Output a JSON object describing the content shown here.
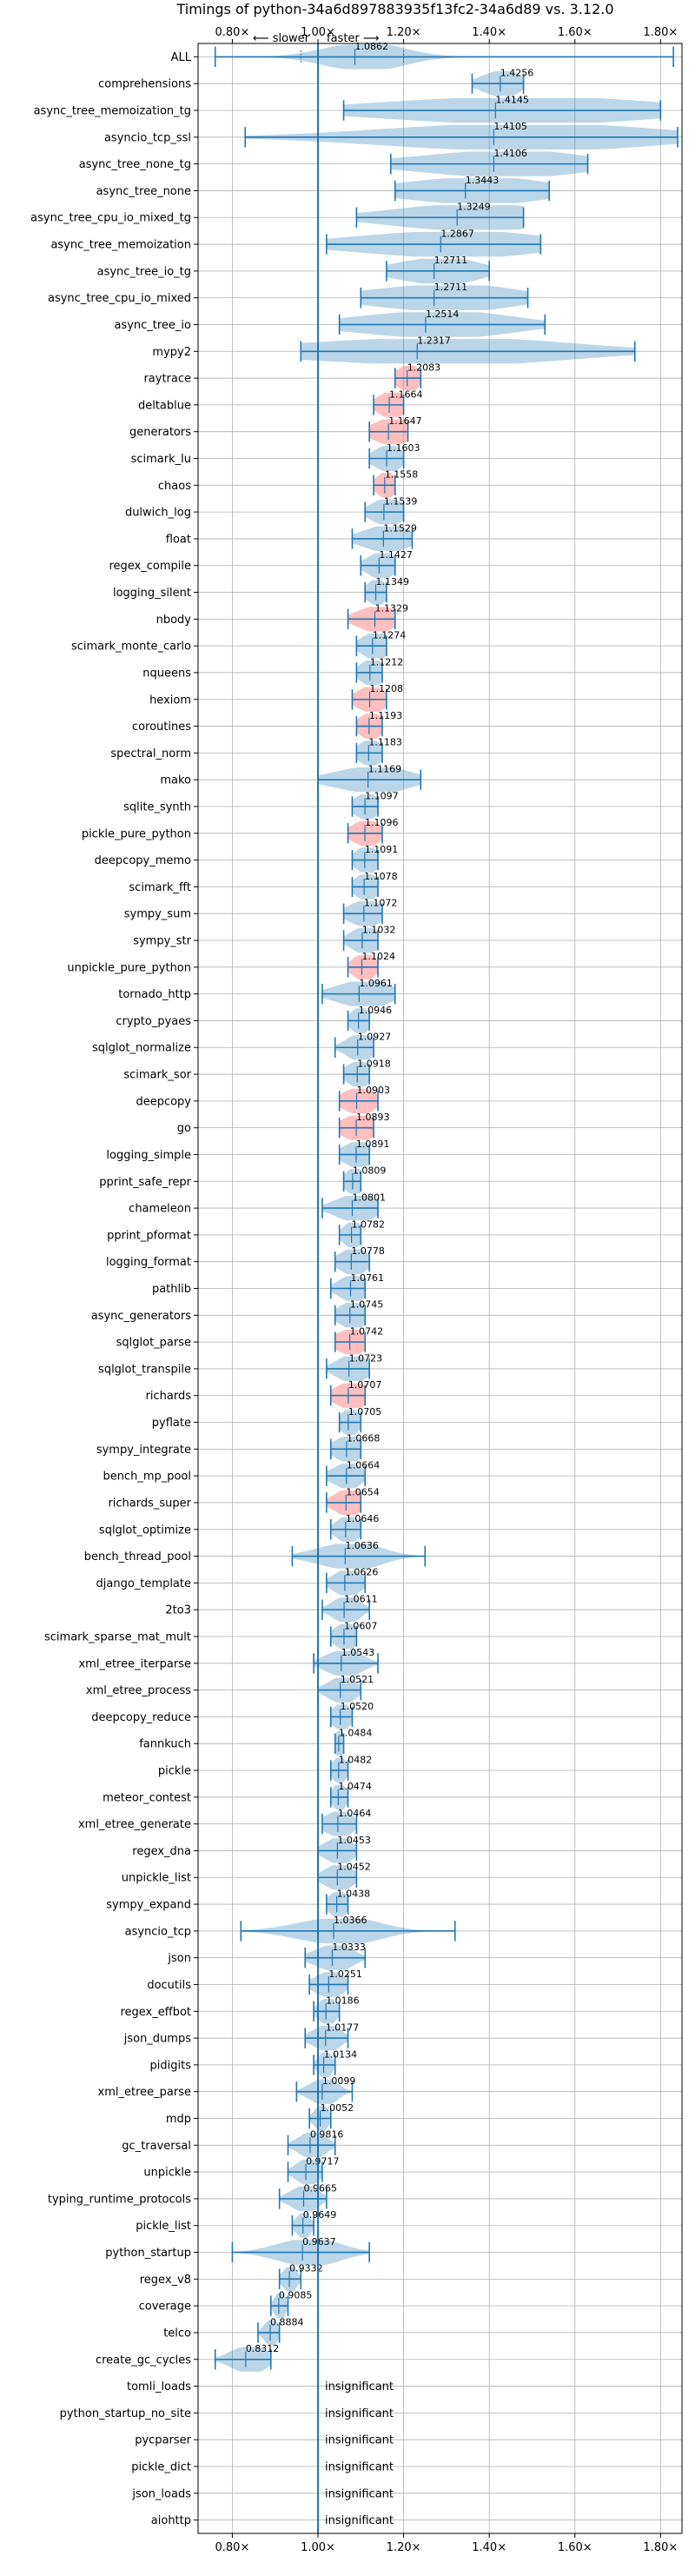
{
  "chart_data": {
    "type": "violin",
    "title": "Timings of python-34a6d897883935f13fc2-34a6d89 vs. 3.12.0",
    "direction_labels": {
      "slower": "⟵ slower",
      "faster": "faster ⟶"
    },
    "xlim": [
      0.72,
      1.85
    ],
    "x_ticks": [
      0.8,
      1.0,
      1.2,
      1.4,
      1.6,
      1.8
    ],
    "x_tick_labels": [
      "0.80×",
      "1.00×",
      "1.20×",
      "1.40×",
      "1.60×",
      "1.80×"
    ],
    "reference_x": 1.0,
    "grid": true,
    "insignificant_label": "insignificant",
    "colors": {
      "normal": "#1f77b4",
      "highlight": "#ff7f7f",
      "line": "#1f77b4"
    },
    "benchmarks": [
      {
        "name": "ALL",
        "value": 1.0862,
        "label": "1.0862",
        "low": 0.76,
        "high": 1.83,
        "q1": 0.96,
        "q3": 1.2,
        "spread": 0.09,
        "highlight": false
      },
      {
        "name": "comprehensions",
        "value": 1.4256,
        "label": "1.4256",
        "low": 1.36,
        "high": 1.48,
        "spread": 0.04,
        "highlight": false
      },
      {
        "name": "async_tree_memoization_tg",
        "value": 1.4145,
        "label": "1.4145",
        "low": 1.06,
        "high": 1.8,
        "spread": 0.3,
        "highlight": false
      },
      {
        "name": "asyncio_tcp_ssl",
        "value": 1.4105,
        "label": "1.4105",
        "low": 0.83,
        "high": 1.84,
        "spread": 0.3,
        "highlight": false
      },
      {
        "name": "async_tree_none_tg",
        "value": 1.4106,
        "label": "1.4106",
        "low": 1.17,
        "high": 1.63,
        "spread": 0.18,
        "highlight": false
      },
      {
        "name": "async_tree_none",
        "value": 1.3443,
        "label": "1.3443",
        "low": 1.18,
        "high": 1.54,
        "spread": 0.16,
        "highlight": false
      },
      {
        "name": "async_tree_cpu_io_mixed_tg",
        "value": 1.3249,
        "label": "1.3249",
        "low": 1.09,
        "high": 1.48,
        "spread": 0.17,
        "highlight": false
      },
      {
        "name": "async_tree_memoization",
        "value": 1.2867,
        "label": "1.2867",
        "low": 1.02,
        "high": 1.52,
        "spread": 0.2,
        "highlight": false
      },
      {
        "name": "async_tree_io_tg",
        "value": 1.2711,
        "label": "1.2711",
        "low": 1.16,
        "high": 1.4,
        "spread": 0.09,
        "highlight": false
      },
      {
        "name": "async_tree_cpu_io_mixed",
        "value": 1.2711,
        "label": "1.2711",
        "low": 1.1,
        "high": 1.49,
        "spread": 0.16,
        "highlight": false
      },
      {
        "name": "async_tree_io",
        "value": 1.2514,
        "label": "1.2514",
        "low": 1.05,
        "high": 1.53,
        "spread": 0.17,
        "highlight": false
      },
      {
        "name": "mypy2",
        "value": 1.2317,
        "label": "1.2317",
        "low": 0.96,
        "high": 1.74,
        "spread": 0.3,
        "highlight": false
      },
      {
        "name": "raytrace",
        "value": 1.2083,
        "label": "1.2083",
        "low": 1.18,
        "high": 1.24,
        "spread": 0.025,
        "highlight": true
      },
      {
        "name": "deltablue",
        "value": 1.1664,
        "label": "1.1664",
        "low": 1.13,
        "high": 1.2,
        "spread": 0.03,
        "highlight": true
      },
      {
        "name": "generators",
        "value": 1.1647,
        "label": "1.1647",
        "low": 1.12,
        "high": 1.21,
        "spread": 0.04,
        "highlight": true
      },
      {
        "name": "scimark_lu",
        "value": 1.1603,
        "label": "1.1603",
        "low": 1.12,
        "high": 1.2,
        "spread": 0.03,
        "highlight": false
      },
      {
        "name": "chaos",
        "value": 1.1558,
        "label": "1.1558",
        "low": 1.13,
        "high": 1.18,
        "spread": 0.02,
        "highlight": true
      },
      {
        "name": "dulwich_log",
        "value": 1.1539,
        "label": "1.1539",
        "low": 1.11,
        "high": 1.2,
        "spread": 0.035,
        "highlight": false
      },
      {
        "name": "float",
        "value": 1.1529,
        "label": "1.1529",
        "low": 1.08,
        "high": 1.22,
        "spread": 0.05,
        "highlight": false
      },
      {
        "name": "regex_compile",
        "value": 1.1427,
        "label": "1.1427",
        "low": 1.1,
        "high": 1.18,
        "spread": 0.03,
        "highlight": false
      },
      {
        "name": "logging_silent",
        "value": 1.1349,
        "label": "1.1349",
        "low": 1.11,
        "high": 1.16,
        "spread": 0.02,
        "highlight": false
      },
      {
        "name": "nbody",
        "value": 1.1329,
        "label": "1.1329",
        "low": 1.07,
        "high": 1.18,
        "spread": 0.04,
        "highlight": true
      },
      {
        "name": "scimark_monte_carlo",
        "value": 1.1274,
        "label": "1.1274",
        "low": 1.09,
        "high": 1.16,
        "spread": 0.03,
        "highlight": false
      },
      {
        "name": "nqueens",
        "value": 1.1212,
        "label": "1.1212",
        "low": 1.09,
        "high": 1.15,
        "spread": 0.025,
        "highlight": false
      },
      {
        "name": "hexiom",
        "value": 1.1208,
        "label": "1.1208",
        "low": 1.08,
        "high": 1.16,
        "spread": 0.03,
        "highlight": true
      },
      {
        "name": "coroutines",
        "value": 1.1193,
        "label": "1.1193",
        "low": 1.09,
        "high": 1.15,
        "spread": 0.025,
        "highlight": true
      },
      {
        "name": "spectral_norm",
        "value": 1.1183,
        "label": "1.1183",
        "low": 1.09,
        "high": 1.15,
        "spread": 0.025,
        "highlight": false
      },
      {
        "name": "mako",
        "value": 1.1169,
        "label": "1.1169",
        "low": 1.0,
        "high": 1.24,
        "spread": 0.08,
        "highlight": false
      },
      {
        "name": "sqlite_synth",
        "value": 1.1097,
        "label": "1.1097",
        "low": 1.08,
        "high": 1.14,
        "spread": 0.025,
        "highlight": false
      },
      {
        "name": "pickle_pure_python",
        "value": 1.1096,
        "label": "1.1096",
        "low": 1.07,
        "high": 1.15,
        "spread": 0.03,
        "highlight": true
      },
      {
        "name": "deepcopy_memo",
        "value": 1.1091,
        "label": "1.1091",
        "low": 1.08,
        "high": 1.14,
        "spread": 0.025,
        "highlight": false
      },
      {
        "name": "scimark_fft",
        "value": 1.1078,
        "label": "1.1078",
        "low": 1.08,
        "high": 1.14,
        "spread": 0.025,
        "highlight": false
      },
      {
        "name": "sympy_sum",
        "value": 1.1072,
        "label": "1.1072",
        "low": 1.06,
        "high": 1.15,
        "spread": 0.035,
        "highlight": false
      },
      {
        "name": "sympy_str",
        "value": 1.1032,
        "label": "1.1032",
        "low": 1.06,
        "high": 1.14,
        "spread": 0.03,
        "highlight": false
      },
      {
        "name": "unpickle_pure_python",
        "value": 1.1024,
        "label": "1.1024",
        "low": 1.07,
        "high": 1.14,
        "spread": 0.025,
        "highlight": true
      },
      {
        "name": "tornado_http",
        "value": 1.0961,
        "label": "1.0961",
        "low": 1.01,
        "high": 1.18,
        "spread": 0.06,
        "highlight": false
      },
      {
        "name": "crypto_pyaes",
        "value": 1.0946,
        "label": "1.0946",
        "low": 1.07,
        "high": 1.12,
        "spread": 0.02,
        "highlight": false
      },
      {
        "name": "sqlglot_normalize",
        "value": 1.0927,
        "label": "1.0927",
        "low": 1.04,
        "high": 1.13,
        "spread": 0.03,
        "highlight": false
      },
      {
        "name": "scimark_sor",
        "value": 1.0918,
        "label": "1.0918",
        "low": 1.06,
        "high": 1.12,
        "spread": 0.025,
        "highlight": false
      },
      {
        "name": "deepcopy",
        "value": 1.0903,
        "label": "1.0903",
        "low": 1.05,
        "high": 1.14,
        "spread": 0.035,
        "highlight": true
      },
      {
        "name": "go",
        "value": 1.0893,
        "label": "1.0893",
        "low": 1.05,
        "high": 1.13,
        "spread": 0.035,
        "highlight": true
      },
      {
        "name": "logging_simple",
        "value": 1.0891,
        "label": "1.0891",
        "low": 1.05,
        "high": 1.12,
        "spread": 0.03,
        "highlight": false
      },
      {
        "name": "pprint_safe_repr",
        "value": 1.0809,
        "label": "1.0809",
        "low": 1.06,
        "high": 1.1,
        "spread": 0.02,
        "highlight": false
      },
      {
        "name": "chameleon",
        "value": 1.0801,
        "label": "1.0801",
        "low": 1.01,
        "high": 1.14,
        "spread": 0.045,
        "highlight": false
      },
      {
        "name": "pprint_pformat",
        "value": 1.0782,
        "label": "1.0782",
        "low": 1.05,
        "high": 1.1,
        "spread": 0.02,
        "highlight": false
      },
      {
        "name": "logging_format",
        "value": 1.0778,
        "label": "1.0778",
        "low": 1.04,
        "high": 1.12,
        "spread": 0.03,
        "highlight": false
      },
      {
        "name": "pathlib",
        "value": 1.0761,
        "label": "1.0761",
        "low": 1.03,
        "high": 1.11,
        "spread": 0.03,
        "highlight": false
      },
      {
        "name": "async_generators",
        "value": 1.0745,
        "label": "1.0745",
        "low": 1.04,
        "high": 1.11,
        "spread": 0.03,
        "highlight": false
      },
      {
        "name": "sqlglot_parse",
        "value": 1.0742,
        "label": "1.0742",
        "low": 1.04,
        "high": 1.11,
        "spread": 0.03,
        "highlight": true
      },
      {
        "name": "sqlglot_transpile",
        "value": 1.0723,
        "label": "1.0723",
        "low": 1.02,
        "high": 1.12,
        "spread": 0.035,
        "highlight": false
      },
      {
        "name": "richards",
        "value": 1.0707,
        "label": "1.0707",
        "low": 1.03,
        "high": 1.11,
        "spread": 0.035,
        "highlight": true
      },
      {
        "name": "pyflate",
        "value": 1.0705,
        "label": "1.0705",
        "low": 1.05,
        "high": 1.1,
        "spread": 0.02,
        "highlight": false
      },
      {
        "name": "sympy_integrate",
        "value": 1.0668,
        "label": "1.0668",
        "low": 1.03,
        "high": 1.1,
        "spread": 0.03,
        "highlight": false
      },
      {
        "name": "bench_mp_pool",
        "value": 1.0664,
        "label": "1.0664",
        "low": 1.02,
        "high": 1.11,
        "spread": 0.03,
        "highlight": false
      },
      {
        "name": "richards_super",
        "value": 1.0654,
        "label": "1.0654",
        "low": 1.02,
        "high": 1.1,
        "spread": 0.03,
        "highlight": true
      },
      {
        "name": "sqlglot_optimize",
        "value": 1.0646,
        "label": "1.0646",
        "low": 1.03,
        "high": 1.1,
        "spread": 0.025,
        "highlight": false
      },
      {
        "name": "bench_thread_pool",
        "value": 1.0636,
        "label": "1.0636",
        "low": 0.94,
        "high": 1.25,
        "spread": 0.07,
        "highlight": false
      },
      {
        "name": "django_template",
        "value": 1.0626,
        "label": "1.0626",
        "low": 1.02,
        "high": 1.11,
        "spread": 0.03,
        "highlight": false
      },
      {
        "name": "2to3",
        "value": 1.0611,
        "label": "1.0611",
        "low": 1.01,
        "high": 1.12,
        "spread": 0.03,
        "highlight": false
      },
      {
        "name": "scimark_sparse_mat_mult",
        "value": 1.0607,
        "label": "1.0607",
        "low": 1.03,
        "high": 1.09,
        "spread": 0.025,
        "highlight": false
      },
      {
        "name": "xml_etree_iterparse",
        "value": 1.0543,
        "label": "1.0543",
        "low": 0.99,
        "high": 1.14,
        "spread": 0.04,
        "highlight": false
      },
      {
        "name": "xml_etree_process",
        "value": 1.0521,
        "label": "1.0521",
        "low": 1.0,
        "high": 1.1,
        "spread": 0.03,
        "highlight": false
      },
      {
        "name": "deepcopy_reduce",
        "value": 1.052,
        "label": "1.0520",
        "low": 1.03,
        "high": 1.08,
        "spread": 0.02,
        "highlight": false
      },
      {
        "name": "fannkuch",
        "value": 1.0484,
        "label": "1.0484",
        "low": 1.04,
        "high": 1.06,
        "spread": 0.01,
        "highlight": false
      },
      {
        "name": "pickle",
        "value": 1.0482,
        "label": "1.0482",
        "low": 1.03,
        "high": 1.07,
        "spread": 0.015,
        "highlight": false
      },
      {
        "name": "meteor_contest",
        "value": 1.0474,
        "label": "1.0474",
        "low": 1.03,
        "high": 1.07,
        "spread": 0.015,
        "highlight": false
      },
      {
        "name": "xml_etree_generate",
        "value": 1.0464,
        "label": "1.0464",
        "low": 1.01,
        "high": 1.09,
        "spread": 0.03,
        "highlight": false
      },
      {
        "name": "regex_dna",
        "value": 1.0453,
        "label": "1.0453",
        "low": 1.0,
        "high": 1.09,
        "spread": 0.03,
        "highlight": false
      },
      {
        "name": "unpickle_list",
        "value": 1.0452,
        "label": "1.0452",
        "low": 1.0,
        "high": 1.09,
        "spread": 0.03,
        "highlight": false
      },
      {
        "name": "sympy_expand",
        "value": 1.0438,
        "label": "1.0438",
        "low": 1.02,
        "high": 1.07,
        "spread": 0.02,
        "highlight": false
      },
      {
        "name": "asyncio_tcp",
        "value": 1.0366,
        "label": "1.0366",
        "low": 0.82,
        "high": 1.32,
        "spread": 0.09,
        "highlight": false
      },
      {
        "name": "json",
        "value": 1.0333,
        "label": "1.0333",
        "low": 0.97,
        "high": 1.11,
        "spread": 0.04,
        "highlight": false
      },
      {
        "name": "docutils",
        "value": 1.0251,
        "label": "1.0251",
        "low": 0.98,
        "high": 1.07,
        "spread": 0.03,
        "highlight": false
      },
      {
        "name": "regex_effbot",
        "value": 1.0186,
        "label": "1.0186",
        "low": 0.99,
        "high": 1.05,
        "spread": 0.02,
        "highlight": false
      },
      {
        "name": "json_dumps",
        "value": 1.0177,
        "label": "1.0177",
        "low": 0.97,
        "high": 1.07,
        "spread": 0.03,
        "highlight": false
      },
      {
        "name": "pidigits",
        "value": 1.0134,
        "label": "1.0134",
        "low": 0.99,
        "high": 1.04,
        "spread": 0.015,
        "highlight": false
      },
      {
        "name": "xml_etree_parse",
        "value": 1.0099,
        "label": "1.0099",
        "low": 0.95,
        "high": 1.08,
        "spread": 0.03,
        "highlight": false
      },
      {
        "name": "mdp",
        "value": 1.0052,
        "label": "1.0052",
        "low": 0.98,
        "high": 1.03,
        "spread": 0.015,
        "highlight": false
      },
      {
        "name": "gc_traversal",
        "value": 0.9816,
        "label": "0.9816",
        "low": 0.93,
        "high": 1.04,
        "spread": 0.03,
        "highlight": false
      },
      {
        "name": "unpickle",
        "value": 0.9717,
        "label": "0.9717",
        "low": 0.93,
        "high": 1.01,
        "spread": 0.025,
        "highlight": false
      },
      {
        "name": "typing_runtime_protocols",
        "value": 0.9665,
        "label": "0.9665",
        "low": 0.91,
        "high": 1.02,
        "spread": 0.03,
        "highlight": false
      },
      {
        "name": "pickle_list",
        "value": 0.9649,
        "label": "0.9649",
        "low": 0.94,
        "high": 0.99,
        "spread": 0.015,
        "highlight": false
      },
      {
        "name": "python_startup",
        "value": 0.9637,
        "label": "0.9637",
        "low": 0.8,
        "high": 1.12,
        "spread": 0.07,
        "highlight": false
      },
      {
        "name": "regex_v8",
        "value": 0.9332,
        "label": "0.9332",
        "low": 0.91,
        "high": 0.96,
        "spread": 0.015,
        "highlight": false
      },
      {
        "name": "coverage",
        "value": 0.9085,
        "label": "0.9085",
        "low": 0.89,
        "high": 0.93,
        "spread": 0.012,
        "highlight": false
      },
      {
        "name": "telco",
        "value": 0.8884,
        "label": "0.8884",
        "low": 0.86,
        "high": 0.91,
        "spread": 0.015,
        "highlight": false
      },
      {
        "name": "create_gc_cycles",
        "value": 0.8312,
        "label": "0.8312",
        "low": 0.76,
        "high": 0.89,
        "spread": 0.04,
        "highlight": false
      },
      {
        "name": "tomli_loads",
        "insignificant": true
      },
      {
        "name": "python_startup_no_site",
        "insignificant": true
      },
      {
        "name": "pycparser",
        "insignificant": true
      },
      {
        "name": "pickle_dict",
        "insignificant": true
      },
      {
        "name": "json_loads",
        "insignificant": true
      },
      {
        "name": "aiohttp",
        "insignificant": true
      }
    ]
  }
}
